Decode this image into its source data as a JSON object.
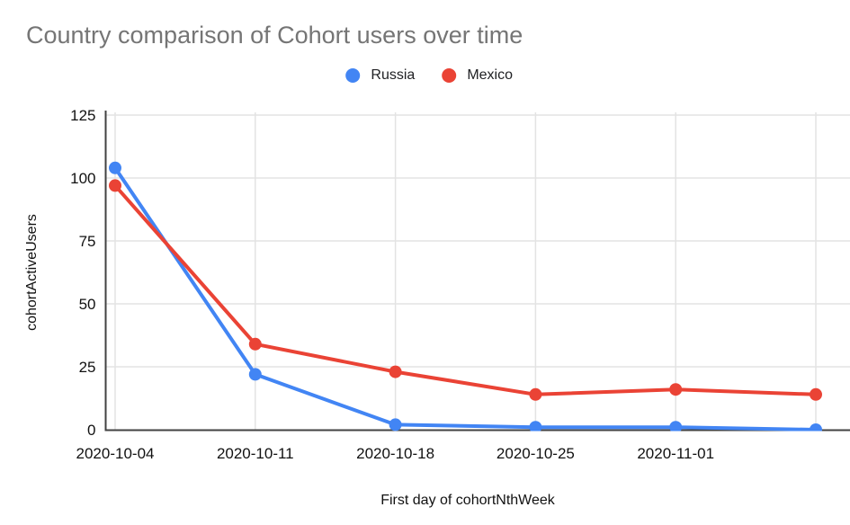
{
  "chart_data": {
    "type": "line",
    "title": "Country comparison of Cohort users over time",
    "xlabel": "First day of cohortNthWeek",
    "ylabel": "cohortActiveUsers",
    "categories": [
      "2020-10-04",
      "2020-10-11",
      "2020-10-18",
      "2020-10-25",
      "2020-11-01",
      ""
    ],
    "x_tick_labels": [
      "2020-10-04",
      "2020-10-11",
      "2020-10-18",
      "2020-10-25",
      "2020-11-01"
    ],
    "y_ticks": [
      0,
      25,
      50,
      75,
      100,
      125
    ],
    "ylim": [
      0,
      125
    ],
    "grid": true,
    "legend_position": "top",
    "series": [
      {
        "name": "Russia",
        "color": "#4285F4",
        "values": [
          104,
          22,
          2,
          1,
          1,
          0
        ]
      },
      {
        "name": "Mexico",
        "color": "#EA4335",
        "values": [
          97,
          34,
          23,
          14,
          16,
          14
        ]
      }
    ]
  },
  "style": {
    "title_color": "#757575",
    "tick_color": "#111111",
    "grid_color": "#e3e3e3",
    "axis_color": "#424242",
    "background": "#ffffff"
  }
}
